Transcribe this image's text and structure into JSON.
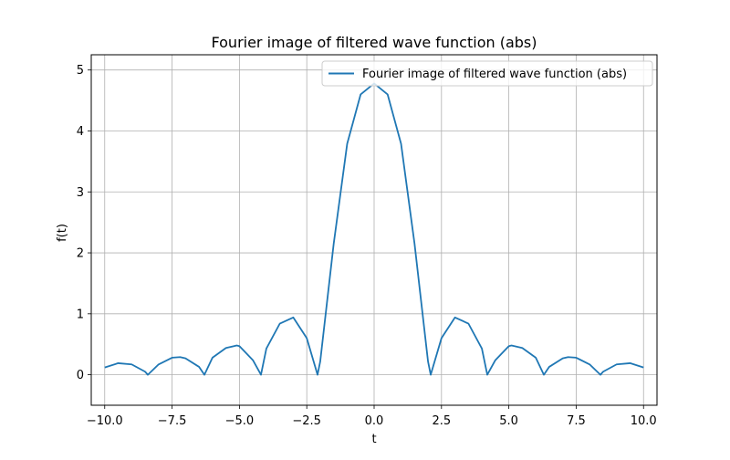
{
  "chart_data": {
    "type": "line",
    "title": "Fourier image of filtered wave function (abs)",
    "xlabel": "t",
    "ylabel": "f(t)",
    "xlim": [
      -10.5,
      10.5
    ],
    "ylim": [
      -0.5,
      5.25
    ],
    "xticks": [
      -10,
      -7.5,
      -5,
      -2.5,
      0,
      2.5,
      5,
      7.5,
      10
    ],
    "xtick_labels": [
      "−10.0",
      "−7.5",
      "−5.0",
      "−2.5",
      "0.0",
      "2.5",
      "5.0",
      "7.5",
      "10.0"
    ],
    "yticks": [
      0,
      1,
      2,
      3,
      4,
      5
    ],
    "ytick_labels": [
      "0",
      "1",
      "2",
      "3",
      "4",
      "5"
    ],
    "grid": true,
    "legend_position": "top-right",
    "series": [
      {
        "name": "Fourier image of filtered wave function (abs)",
        "color": "#1f77b4",
        "x": [
          -10.0,
          -9.5,
          -9.0,
          -8.5,
          -8.4,
          -8.0,
          -7.5,
          -7.2,
          -7.0,
          -6.5,
          -6.3,
          -6.0,
          -5.5,
          -5.1,
          -5.0,
          -4.5,
          -4.2,
          -4.0,
          -3.5,
          -3.0,
          -2.5,
          -2.1,
          -2.0,
          -1.5,
          -1.0,
          -0.5,
          0.0,
          0.5,
          1.0,
          1.5,
          2.0,
          2.1,
          2.5,
          3.0,
          3.5,
          4.0,
          4.2,
          4.5,
          5.0,
          5.1,
          5.5,
          6.0,
          6.3,
          6.5,
          7.0,
          7.2,
          7.5,
          8.0,
          8.4,
          8.5,
          9.0,
          9.5,
          10.0
        ],
        "y": [
          0.12,
          0.19,
          0.17,
          0.05,
          0.0,
          0.17,
          0.28,
          0.29,
          0.27,
          0.13,
          0.0,
          0.28,
          0.44,
          0.48,
          0.47,
          0.24,
          0.0,
          0.43,
          0.84,
          0.94,
          0.6,
          0.0,
          0.22,
          2.15,
          3.79,
          4.6,
          4.78,
          4.6,
          3.79,
          2.15,
          0.22,
          0.0,
          0.6,
          0.94,
          0.84,
          0.43,
          0.0,
          0.24,
          0.47,
          0.48,
          0.44,
          0.28,
          0.0,
          0.13,
          0.27,
          0.29,
          0.28,
          0.17,
          0.0,
          0.05,
          0.17,
          0.19,
          0.12
        ]
      }
    ]
  }
}
